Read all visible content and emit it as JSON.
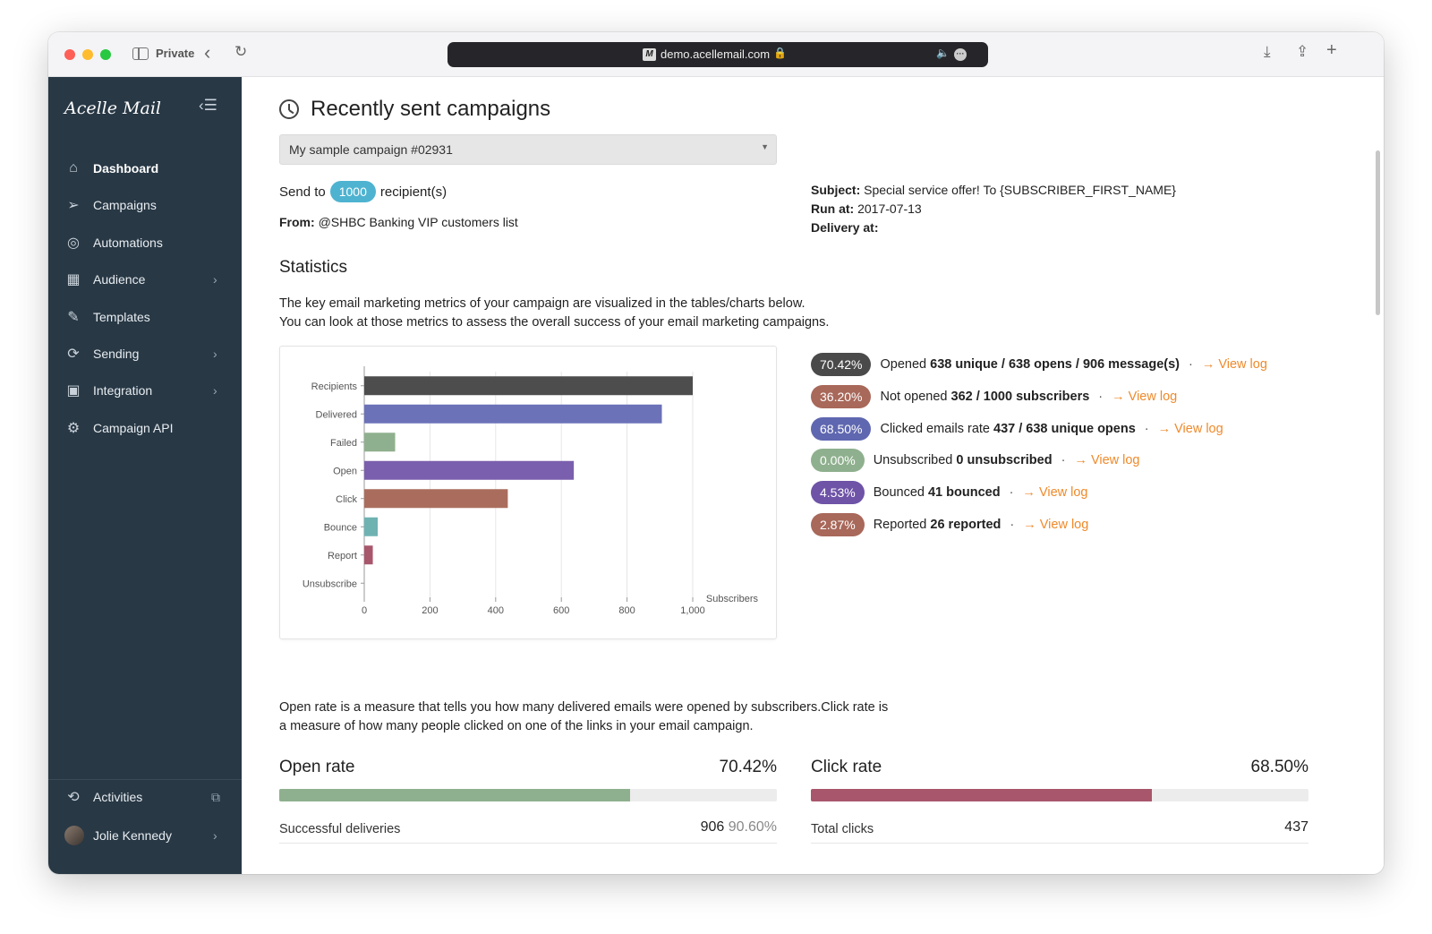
{
  "browser": {
    "private_label": "Private",
    "url": "demo.acellemail.com"
  },
  "sidebar": {
    "logo": "Acelle Mail",
    "items": [
      {
        "label": "Dashboard",
        "icon": "home-icon",
        "chevron": false,
        "active": true
      },
      {
        "label": "Campaigns",
        "icon": "paper-plane-icon",
        "chevron": false,
        "active": false
      },
      {
        "label": "Automations",
        "icon": "shield-check-icon",
        "chevron": false,
        "active": false
      },
      {
        "label": "Audience",
        "icon": "audience-icon",
        "chevron": true,
        "active": false
      },
      {
        "label": "Templates",
        "icon": "edit-icon",
        "chevron": false,
        "active": false
      },
      {
        "label": "Sending",
        "icon": "sync-icon",
        "chevron": true,
        "active": false
      },
      {
        "label": "Integration",
        "icon": "integration-icon",
        "chevron": true,
        "active": false
      },
      {
        "label": "Campaign API",
        "icon": "gear-icon",
        "chevron": false,
        "active": false
      }
    ],
    "activities_label": "Activities",
    "user_name": "Jolie Kennedy"
  },
  "main": {
    "title": "Recently sent campaigns",
    "campaign_select": "My sample campaign #02931",
    "send_to_prefix": "Send to",
    "recipient_count": "1000",
    "send_to_suffix": "recipient(s)",
    "from_label": "From:",
    "from_value": "@SHBC Banking VIP customers list",
    "subject_label": "Subject:",
    "subject_value": "Special service offer! To {SUBSCRIBER_FIRST_NAME}",
    "run_at_label": "Run at:",
    "run_at_value": "2017-07-13",
    "delivery_at_label": "Delivery at:",
    "statistics_title": "Statistics",
    "statistics_desc_1": "The key email marketing metrics of your campaign are visualized in the tables/charts below.",
    "statistics_desc_2": "You can look at those metrics to assess the overall success of your email marketing campaigns."
  },
  "chart_data": {
    "type": "bar",
    "orientation": "horizontal",
    "categories": [
      "Recipients",
      "Delivered",
      "Failed",
      "Open",
      "Click",
      "Bounce",
      "Report",
      "Unsubscribe"
    ],
    "values": [
      1000,
      906,
      94,
      638,
      437,
      41,
      26,
      0
    ],
    "colors": [
      "#4d4d4d",
      "#6b72b8",
      "#8fb08e",
      "#7a5fae",
      "#aa6d5d",
      "#6fb2b2",
      "#a8566b",
      "#999999"
    ],
    "xlabel": "Subscribers",
    "xlim": [
      0,
      1000
    ],
    "xticks": [
      "0",
      "200",
      "400",
      "600",
      "800",
      "1,000"
    ],
    "grid": true
  },
  "metrics": [
    {
      "pct": "70.42%",
      "color": "#4a4a4a",
      "label": "Opened",
      "value": "638 unique / 638 opens / 906 message(s)",
      "link": "View log"
    },
    {
      "pct": "36.20%",
      "color": "#a8685a",
      "label": "Not opened",
      "value": "362 / 1000 subscribers",
      "link": "View log"
    },
    {
      "pct": "68.50%",
      "color": "#5f67b0",
      "label": "Clicked emails rate",
      "value": "437 / 638 unique opens",
      "link": "View log"
    },
    {
      "pct": "0.00%",
      "color": "#8fb08e",
      "label": "Unsubscribed",
      "value": "0 unsubscribed",
      "link": "View log"
    },
    {
      "pct": "4.53%",
      "color": "#6e53a7",
      "label": "Bounced",
      "value": "41 bounced",
      "link": "View log"
    },
    {
      "pct": "2.87%",
      "color": "#a8685a",
      "label": "Reported",
      "value": "26 reported",
      "link": "View log"
    }
  ],
  "rates": {
    "desc_1": "Open rate is a measure that tells you how many delivered emails were opened by subscribers.Click rate is",
    "desc_2": "a measure of how many people clicked on one of the links in your email campaign.",
    "open": {
      "title": "Open rate",
      "value": "70.42%",
      "fraction": 0.7042,
      "color": "#8fb08e",
      "sub_label": "Successful deliveries",
      "sub_value": "906",
      "sub_pct": "90.60%"
    },
    "click": {
      "title": "Click rate",
      "value": "68.50%",
      "fraction": 0.685,
      "color": "#a8566b",
      "sub_label": "Total clicks",
      "sub_value": "437"
    }
  }
}
